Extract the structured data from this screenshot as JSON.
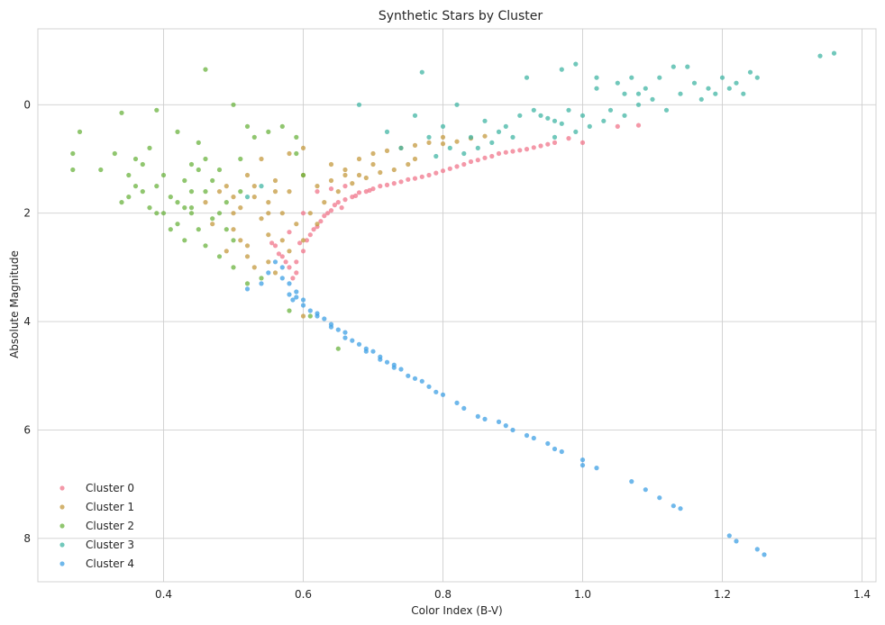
{
  "chart_data": {
    "type": "scatter",
    "title": "Synthetic Stars by Cluster",
    "xlabel": "Color Index (B-V)",
    "ylabel": "Absolute Magnitude",
    "xlim": [
      0.22,
      1.42
    ],
    "ylim": [
      8.8,
      -1.4
    ],
    "y_inverted": true,
    "x_ticks": [
      0.4,
      0.6,
      0.8,
      1.0,
      1.2,
      1.4
    ],
    "x_tick_labels": [
      "0.4",
      "0.6",
      "0.8",
      "1.0",
      "1.2",
      "1.4"
    ],
    "y_ticks": [
      0,
      2,
      4,
      6,
      8
    ],
    "y_tick_labels": [
      "0",
      "2",
      "4",
      "6",
      "8"
    ],
    "grid": true,
    "legend_position": "lower-left",
    "series": [
      {
        "name": "Cluster 0",
        "color": "#f0768b",
        "points": [
          [
            0.56,
            2.6
          ],
          [
            0.57,
            2.8
          ],
          [
            0.58,
            3.0
          ],
          [
            0.585,
            3.2
          ],
          [
            0.59,
            2.9
          ],
          [
            0.6,
            2.7
          ],
          [
            0.605,
            2.5
          ],
          [
            0.61,
            2.4
          ],
          [
            0.62,
            2.25
          ],
          [
            0.625,
            2.15
          ],
          [
            0.63,
            2.05
          ],
          [
            0.64,
            1.95
          ],
          [
            0.645,
            1.85
          ],
          [
            0.65,
            1.8
          ],
          [
            0.66,
            1.75
          ],
          [
            0.67,
            1.7
          ],
          [
            0.68,
            1.62
          ],
          [
            0.69,
            1.6
          ],
          [
            0.7,
            1.55
          ],
          [
            0.72,
            1.48
          ],
          [
            0.74,
            1.42
          ],
          [
            0.76,
            1.36
          ],
          [
            0.78,
            1.3
          ],
          [
            0.8,
            1.22
          ],
          [
            0.82,
            1.14
          ],
          [
            0.84,
            1.05
          ],
          [
            0.86,
            0.98
          ],
          [
            0.88,
            0.9
          ],
          [
            0.9,
            0.86
          ],
          [
            0.92,
            0.82
          ],
          [
            0.94,
            0.76
          ],
          [
            0.96,
            0.7
          ],
          [
            0.98,
            0.62
          ],
          [
            1.0,
            0.7
          ],
          [
            1.05,
            0.4
          ],
          [
            1.08,
            0.38
          ],
          [
            0.6,
            2.0
          ],
          [
            0.62,
            1.6
          ],
          [
            0.64,
            1.55
          ],
          [
            0.66,
            1.5
          ],
          [
            0.58,
            2.35
          ],
          [
            0.595,
            2.55
          ],
          [
            0.615,
            2.3
          ],
          [
            0.635,
            2.0
          ],
          [
            0.655,
            1.9
          ],
          [
            0.675,
            1.68
          ],
          [
            0.695,
            1.58
          ],
          [
            0.71,
            1.5
          ],
          [
            0.73,
            1.45
          ],
          [
            0.75,
            1.38
          ],
          [
            0.77,
            1.33
          ],
          [
            0.79,
            1.26
          ],
          [
            0.81,
            1.18
          ],
          [
            0.83,
            1.1
          ],
          [
            0.85,
            1.02
          ],
          [
            0.87,
            0.95
          ],
          [
            0.89,
            0.88
          ],
          [
            0.91,
            0.84
          ],
          [
            0.93,
            0.79
          ],
          [
            0.95,
            0.73
          ],
          [
            0.575,
            2.9
          ],
          [
            0.565,
            2.75
          ],
          [
            0.555,
            2.55
          ],
          [
            0.59,
            3.1
          ]
        ]
      },
      {
        "name": "Cluster 1",
        "color": "#c49a3f",
        "points": [
          [
            0.5,
            2.3
          ],
          [
            0.52,
            2.6
          ],
          [
            0.54,
            2.1
          ],
          [
            0.55,
            1.8
          ],
          [
            0.53,
            1.5
          ],
          [
            0.51,
            1.9
          ],
          [
            0.56,
            1.4
          ],
          [
            0.58,
            1.6
          ],
          [
            0.6,
            1.3
          ],
          [
            0.62,
            1.5
          ],
          [
            0.64,
            1.4
          ],
          [
            0.66,
            1.2
          ],
          [
            0.68,
            1.0
          ],
          [
            0.7,
            0.9
          ],
          [
            0.72,
            0.85
          ],
          [
            0.74,
            0.8
          ],
          [
            0.76,
            0.75
          ],
          [
            0.78,
            0.7
          ],
          [
            0.8,
            0.72
          ],
          [
            0.82,
            0.68
          ],
          [
            0.84,
            0.62
          ],
          [
            0.86,
            0.58
          ],
          [
            0.57,
            2.5
          ],
          [
            0.55,
            2.9
          ],
          [
            0.53,
            3.0
          ],
          [
            0.49,
            2.7
          ],
          [
            0.47,
            2.2
          ],
          [
            0.46,
            1.8
          ],
          [
            0.48,
            1.6
          ],
          [
            0.52,
            1.3
          ],
          [
            0.54,
            1.0
          ],
          [
            0.58,
            0.9
          ],
          [
            0.6,
            0.8
          ],
          [
            0.63,
            1.8
          ],
          [
            0.61,
            2.0
          ],
          [
            0.59,
            2.2
          ],
          [
            0.57,
            2.0
          ],
          [
            0.55,
            2.4
          ],
          [
            0.51,
            2.5
          ],
          [
            0.5,
            2.0
          ],
          [
            0.49,
            1.5
          ],
          [
            0.53,
            1.7
          ],
          [
            0.56,
            1.6
          ],
          [
            0.65,
            1.6
          ],
          [
            0.67,
            1.45
          ],
          [
            0.69,
            1.35
          ],
          [
            0.71,
            1.25
          ],
          [
            0.73,
            1.2
          ],
          [
            0.75,
            1.1
          ],
          [
            0.62,
            2.2
          ],
          [
            0.6,
            2.5
          ],
          [
            0.58,
            2.7
          ],
          [
            0.56,
            3.1
          ],
          [
            0.52,
            2.8
          ],
          [
            0.5,
            1.7
          ],
          [
            0.6,
            3.9
          ],
          [
            0.64,
            1.1
          ],
          [
            0.66,
            1.3
          ],
          [
            0.7,
            1.1
          ],
          [
            0.68,
            1.3
          ],
          [
            0.76,
            1.0
          ],
          [
            0.8,
            0.6
          ],
          [
            0.55,
            2.0
          ]
        ]
      },
      {
        "name": "Cluster 2",
        "color": "#6bb33f",
        "points": [
          [
            0.28,
            0.5
          ],
          [
            0.27,
            0.9
          ],
          [
            0.27,
            1.2
          ],
          [
            0.31,
            1.2
          ],
          [
            0.33,
            0.9
          ],
          [
            0.34,
            0.15
          ],
          [
            0.35,
            1.7
          ],
          [
            0.36,
            1.5
          ],
          [
            0.37,
            1.1
          ],
          [
            0.38,
            0.8
          ],
          [
            0.38,
            1.9
          ],
          [
            0.39,
            1.5
          ],
          [
            0.4,
            2.0
          ],
          [
            0.41,
            1.7
          ],
          [
            0.42,
            2.2
          ],
          [
            0.43,
            1.4
          ],
          [
            0.44,
            1.9
          ],
          [
            0.45,
            2.3
          ],
          [
            0.46,
            1.6
          ],
          [
            0.47,
            2.1
          ],
          [
            0.48,
            1.2
          ],
          [
            0.49,
            1.8
          ],
          [
            0.5,
            2.5
          ],
          [
            0.51,
            1.0
          ],
          [
            0.52,
            0.4
          ],
          [
            0.5,
            0.0
          ],
          [
            0.46,
            -0.65
          ],
          [
            0.45,
            0.7
          ],
          [
            0.44,
            1.1
          ],
          [
            0.42,
            0.5
          ],
          [
            0.4,
            1.3
          ],
          [
            0.39,
            0.1
          ],
          [
            0.36,
            1.0
          ],
          [
            0.35,
            1.3
          ],
          [
            0.34,
            1.8
          ],
          [
            0.43,
            2.5
          ],
          [
            0.46,
            2.6
          ],
          [
            0.48,
            2.8
          ],
          [
            0.5,
            3.0
          ],
          [
            0.52,
            3.3
          ],
          [
            0.54,
            3.2
          ],
          [
            0.49,
            2.3
          ],
          [
            0.47,
            1.4
          ],
          [
            0.45,
            1.2
          ],
          [
            0.44,
            1.6
          ],
          [
            0.42,
            1.8
          ],
          [
            0.41,
            2.3
          ],
          [
            0.39,
            2.0
          ],
          [
            0.37,
            1.6
          ],
          [
            0.53,
            0.6
          ],
          [
            0.55,
            0.5
          ],
          [
            0.57,
            0.4
          ],
          [
            0.59,
            0.6
          ],
          [
            0.6,
            1.3
          ],
          [
            0.59,
            0.9
          ],
          [
            0.58,
            3.8
          ],
          [
            0.61,
            3.9
          ],
          [
            0.65,
            4.5
          ],
          [
            0.51,
            1.6
          ],
          [
            0.48,
            2.0
          ],
          [
            0.46,
            1.0
          ],
          [
            0.44,
            2.0
          ],
          [
            0.43,
            1.9
          ]
        ]
      },
      {
        "name": "Cluster 3",
        "color": "#41b5a4",
        "points": [
          [
            0.68,
            0.0
          ],
          [
            0.72,
            0.5
          ],
          [
            0.74,
            0.8
          ],
          [
            0.76,
            0.2
          ],
          [
            0.77,
            -0.6
          ],
          [
            0.78,
            0.6
          ],
          [
            0.8,
            0.4
          ],
          [
            0.82,
            0.0
          ],
          [
            0.84,
            0.6
          ],
          [
            0.86,
            0.3
          ],
          [
            0.88,
            0.5
          ],
          [
            0.9,
            0.6
          ],
          [
            0.92,
            -0.5
          ],
          [
            0.94,
            0.2
          ],
          [
            0.96,
            0.3
          ],
          [
            0.97,
            -0.65
          ],
          [
            0.98,
            0.1
          ],
          [
            0.99,
            -0.75
          ],
          [
            1.0,
            0.2
          ],
          [
            1.02,
            -0.3
          ],
          [
            1.04,
            0.1
          ],
          [
            1.06,
            -0.2
          ],
          [
            1.08,
            0.0
          ],
          [
            1.1,
            -0.1
          ],
          [
            1.12,
            0.1
          ],
          [
            1.14,
            -0.2
          ],
          [
            1.16,
            -0.4
          ],
          [
            1.18,
            -0.3
          ],
          [
            1.2,
            -0.5
          ],
          [
            1.22,
            -0.4
          ],
          [
            1.24,
            -0.6
          ],
          [
            1.25,
            -0.5
          ],
          [
            1.34,
            -0.9
          ],
          [
            1.36,
            -0.95
          ],
          [
            1.15,
            -0.7
          ],
          [
            1.13,
            -0.7
          ],
          [
            1.11,
            -0.5
          ],
          [
            1.09,
            -0.3
          ],
          [
            1.07,
            -0.5
          ],
          [
            1.05,
            -0.4
          ],
          [
            1.03,
            0.3
          ],
          [
            1.01,
            0.4
          ],
          [
            0.99,
            0.5
          ],
          [
            0.97,
            0.35
          ],
          [
            0.95,
            0.25
          ],
          [
            0.93,
            0.1
          ],
          [
            0.91,
            0.2
          ],
          [
            0.89,
            0.4
          ],
          [
            0.87,
            0.7
          ],
          [
            0.85,
            0.8
          ],
          [
            0.83,
            0.9
          ],
          [
            0.81,
            0.8
          ],
          [
            0.79,
            0.95
          ],
          [
            0.54,
            1.5
          ],
          [
            0.52,
            1.7
          ],
          [
            1.19,
            -0.2
          ],
          [
            1.21,
            -0.3
          ],
          [
            1.23,
            -0.2
          ],
          [
            1.17,
            -0.1
          ],
          [
            1.02,
            -0.5
          ],
          [
            1.06,
            0.2
          ],
          [
            1.08,
            -0.2
          ],
          [
            0.96,
            0.6
          ]
        ]
      },
      {
        "name": "Cluster 4",
        "color": "#3fa0e4",
        "points": [
          [
            0.52,
            3.4
          ],
          [
            0.54,
            3.3
          ],
          [
            0.55,
            3.1
          ],
          [
            0.56,
            2.9
          ],
          [
            0.57,
            3.2
          ],
          [
            0.58,
            3.5
          ],
          [
            0.585,
            3.6
          ],
          [
            0.59,
            3.55
          ],
          [
            0.6,
            3.7
          ],
          [
            0.61,
            3.8
          ],
          [
            0.62,
            3.85
          ],
          [
            0.63,
            3.95
          ],
          [
            0.64,
            4.05
          ],
          [
            0.65,
            4.15
          ],
          [
            0.66,
            4.2
          ],
          [
            0.67,
            4.35
          ],
          [
            0.68,
            4.42
          ],
          [
            0.69,
            4.5
          ],
          [
            0.7,
            4.55
          ],
          [
            0.71,
            4.65
          ],
          [
            0.72,
            4.75
          ],
          [
            0.73,
            4.8
          ],
          [
            0.74,
            4.88
          ],
          [
            0.75,
            5.0
          ],
          [
            0.76,
            5.05
          ],
          [
            0.77,
            5.1
          ],
          [
            0.78,
            5.2
          ],
          [
            0.79,
            5.3
          ],
          [
            0.8,
            5.35
          ],
          [
            0.82,
            5.5
          ],
          [
            0.83,
            5.6
          ],
          [
            0.85,
            5.75
          ],
          [
            0.86,
            5.8
          ],
          [
            0.88,
            5.85
          ],
          [
            0.89,
            5.92
          ],
          [
            0.9,
            6.0
          ],
          [
            0.92,
            6.1
          ],
          [
            0.93,
            6.15
          ],
          [
            0.95,
            6.25
          ],
          [
            0.96,
            6.35
          ],
          [
            0.97,
            6.4
          ],
          [
            1.0,
            6.55
          ],
          [
            1.0,
            6.65
          ],
          [
            1.02,
            6.7
          ],
          [
            1.07,
            6.95
          ],
          [
            1.09,
            7.1
          ],
          [
            1.11,
            7.25
          ],
          [
            1.13,
            7.4
          ],
          [
            1.14,
            7.45
          ],
          [
            1.21,
            7.95
          ],
          [
            1.22,
            8.05
          ],
          [
            1.25,
            8.2
          ],
          [
            1.26,
            8.3
          ],
          [
            0.57,
            3.0
          ],
          [
            0.58,
            3.3
          ],
          [
            0.59,
            3.45
          ],
          [
            0.6,
            3.6
          ],
          [
            0.62,
            3.9
          ],
          [
            0.64,
            4.1
          ],
          [
            0.66,
            4.3
          ],
          [
            0.69,
            4.55
          ],
          [
            0.71,
            4.7
          ],
          [
            0.73,
            4.85
          ]
        ]
      }
    ]
  }
}
